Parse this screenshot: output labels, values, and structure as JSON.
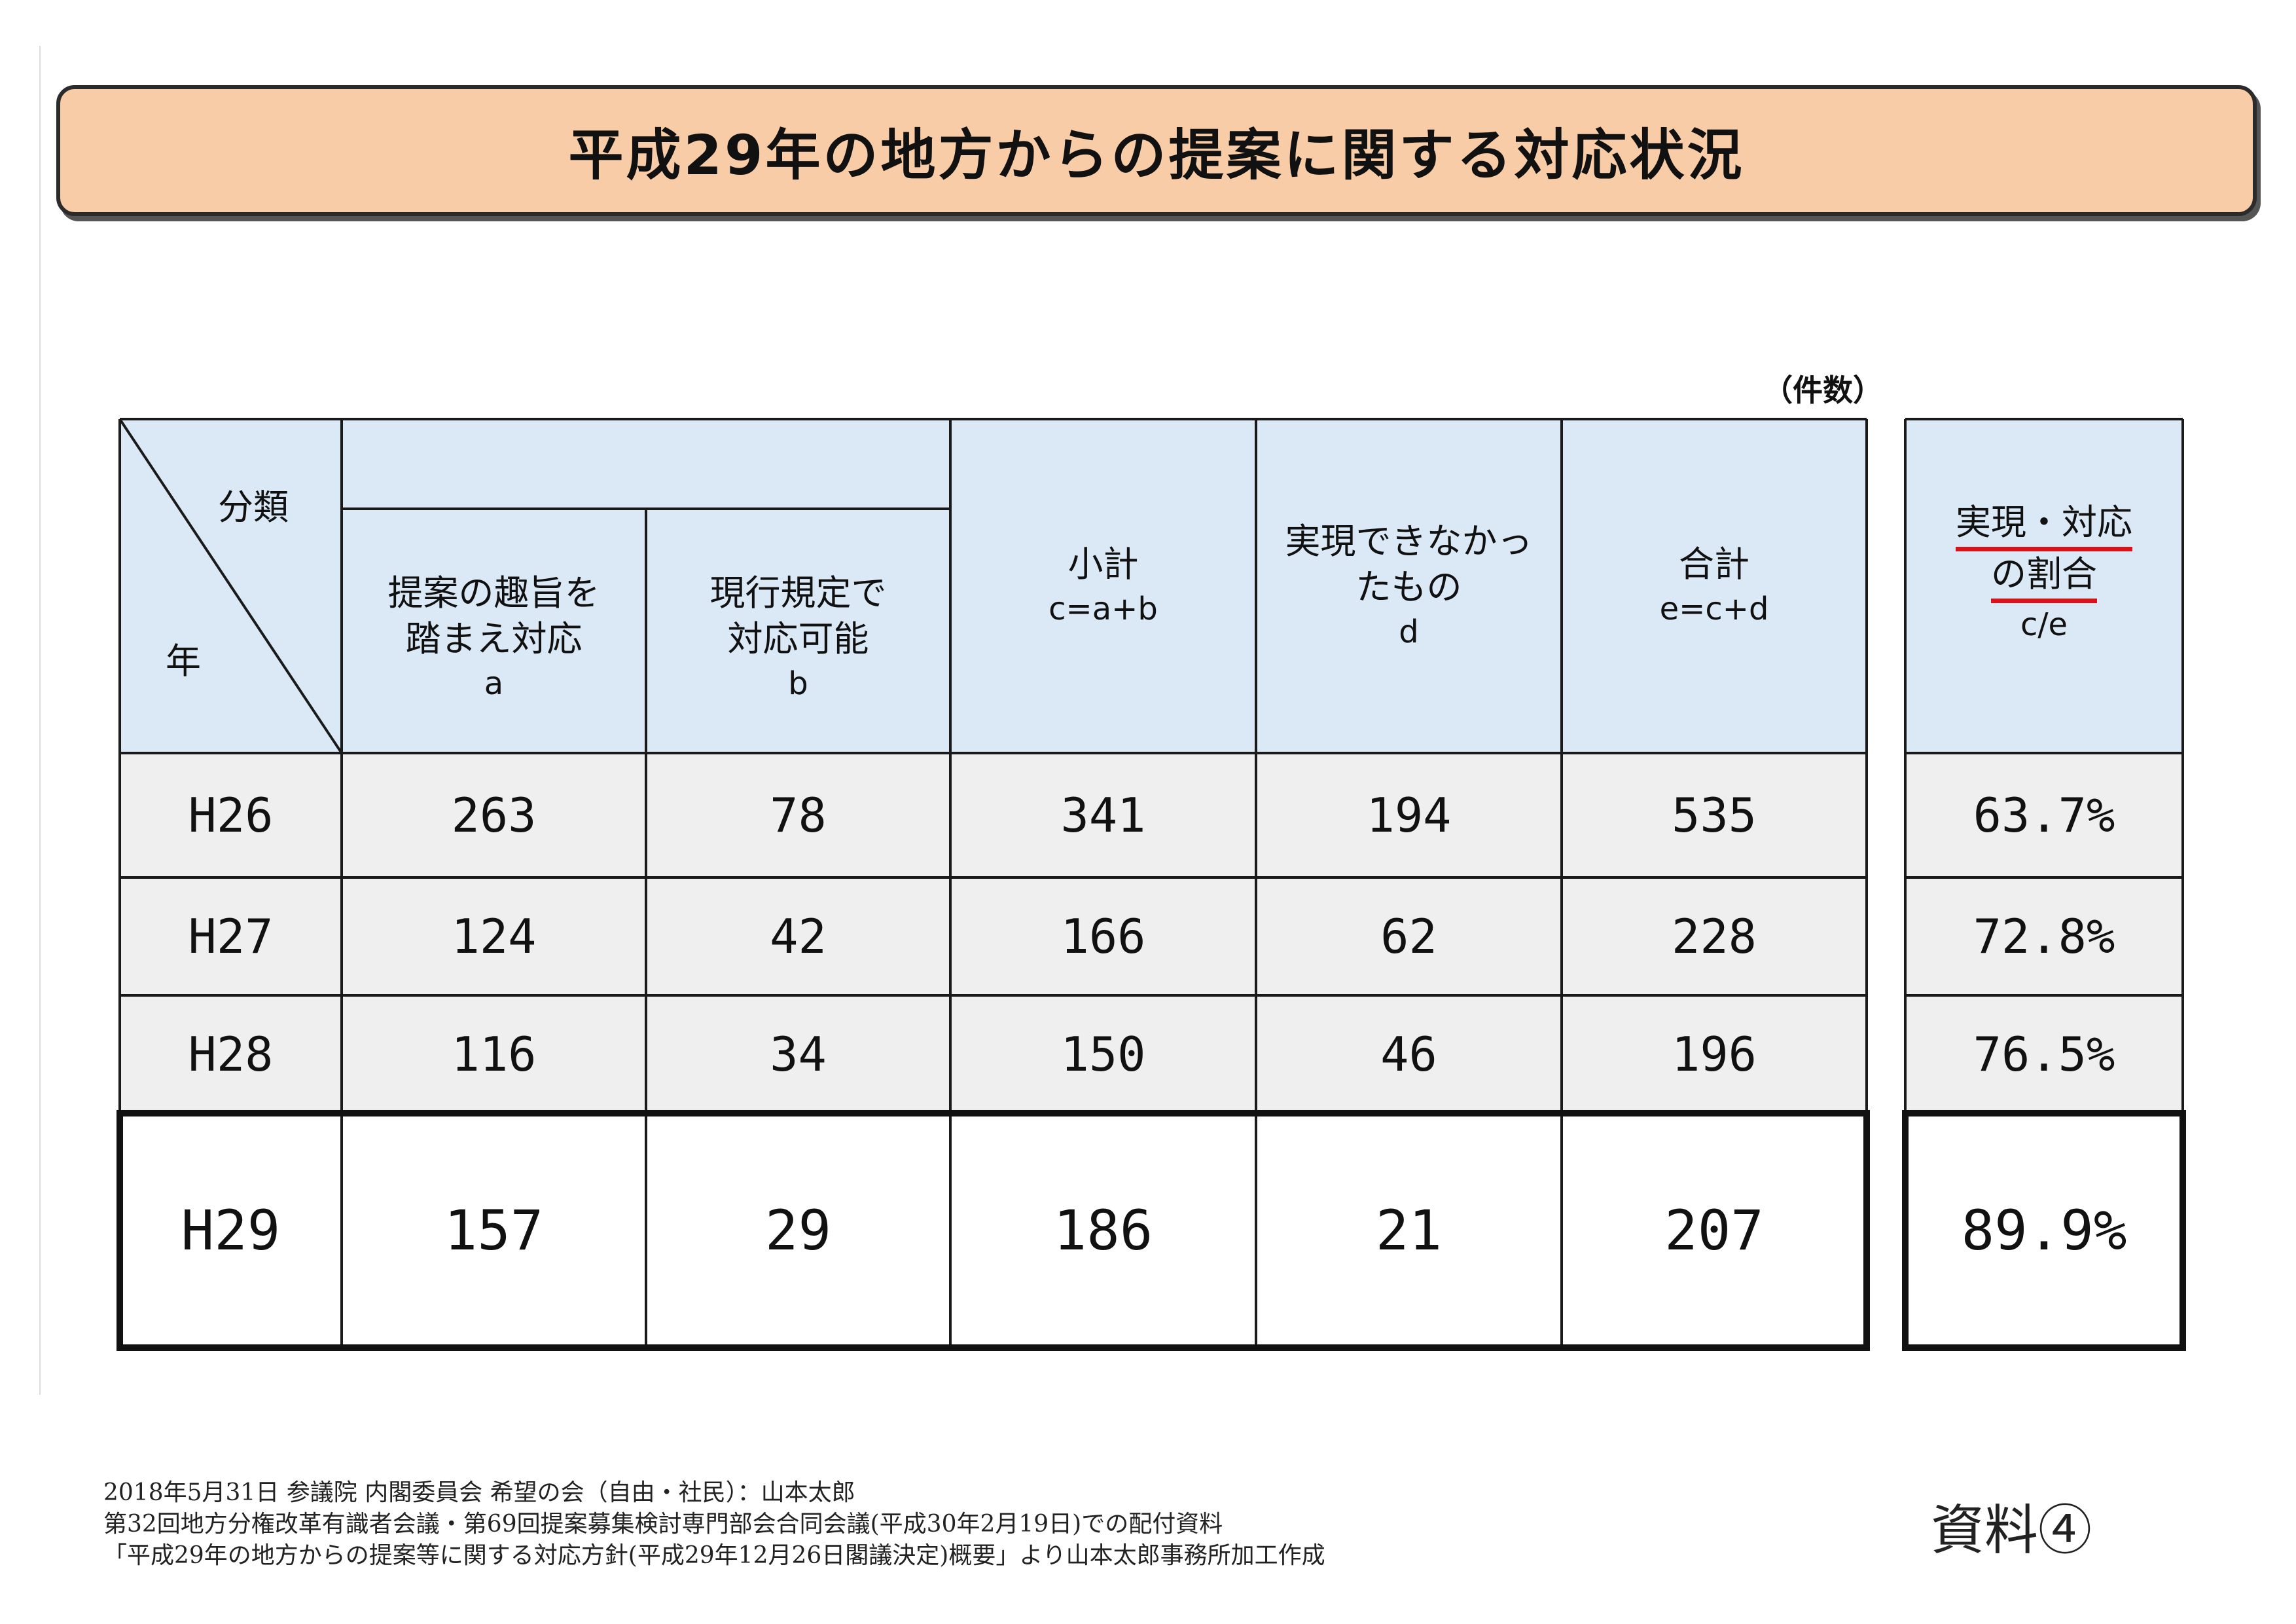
{
  "title": "平成29年の地方からの提案に関する対応状況",
  "unit_label": "（件数）",
  "table": {
    "corner": {
      "top": "分類",
      "bottom": "年"
    },
    "columns": [
      {
        "label": "提案の趣旨を\n踏まえ対応",
        "formula": "a"
      },
      {
        "label": "現行規定で\n対応可能",
        "formula": "b"
      },
      {
        "label": "小計",
        "formula": "c=a+b"
      },
      {
        "label": "実現できなかっ\nたもの",
        "formula": "d"
      },
      {
        "label": "合計",
        "formula": "e=c+d"
      }
    ],
    "ratio_column": {
      "label_line1": "実現・対応",
      "label_line2": "の割合",
      "formula": "c/e"
    },
    "rows": [
      {
        "year": "H26",
        "a": "263",
        "b": "78",
        "c": "341",
        "d": "194",
        "e": "535",
        "ratio": "63.7%"
      },
      {
        "year": "H27",
        "a": "124",
        "b": "42",
        "c": "166",
        "d": "62",
        "e": "228",
        "ratio": "72.8%"
      },
      {
        "year": "H28",
        "a": "116",
        "b": "34",
        "c": "150",
        "d": "46",
        "e": "196",
        "ratio": "76.5%"
      },
      {
        "year": "H29",
        "a": "157",
        "b": "29",
        "c": "186",
        "d": "21",
        "e": "207",
        "ratio": "89.9%"
      }
    ]
  },
  "footer": {
    "line1": "2018年5月31日 参議院 内閣委員会 希望の会（自由・社民）：山本太郎",
    "line2": "第32回地方分権改革有識者会議・第69回提案募集検討専門部会合同会議(平成30年2月19日)での配付資料",
    "line3": "「平成29年の地方からの提案等に関する対応方針(平成29年12月26日閣議決定)概要」より山本太郎事務所加工作成"
  },
  "document_label": "資料④",
  "colors": {
    "title_bg": "#f8cca7",
    "header_bg": "#dbe9f6",
    "row_bg": "#efefef",
    "underline": "#d7141a"
  }
}
